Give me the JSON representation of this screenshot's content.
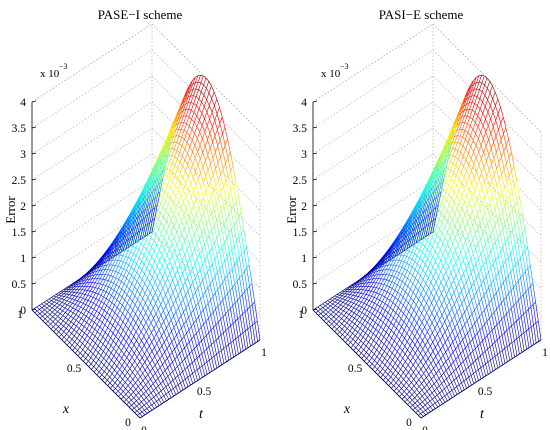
{
  "chart_data": [
    {
      "type": "surface",
      "title": "PASE−I scheme",
      "zlabel": "Error",
      "xlabel": "x",
      "ylabel": "t",
      "zscale": "x 10",
      "zscale_exp": "−3",
      "zticks": [
        "0",
        "0.5",
        "1",
        "1.5",
        "2",
        "2.5",
        "3",
        "3.5",
        "4"
      ],
      "xticks": [
        "0",
        "0.5",
        "1"
      ],
      "tticks": [
        "0",
        "0.5",
        "1"
      ],
      "xlim": [
        0,
        1
      ],
      "tlim": [
        0,
        1
      ],
      "zlim": [
        0,
        0.004
      ],
      "peak": 0.004,
      "peak_at": {
        "x": 0.5,
        "t": 1.0
      },
      "grid": true,
      "colormap": "jet"
    },
    {
      "type": "surface",
      "title": "PASI−E scheme",
      "zlabel": "Error",
      "xlabel": "x",
      "ylabel": "t",
      "zscale": "x 10",
      "zscale_exp": "−3",
      "zticks": [
        "0",
        "0.5",
        "1",
        "1.5",
        "2",
        "2.5",
        "3",
        "3.5",
        "4"
      ],
      "xticks": [
        "0",
        "0.5",
        "1"
      ],
      "tticks": [
        "0",
        "0.5",
        "1"
      ],
      "xlim": [
        0,
        1
      ],
      "tlim": [
        0,
        1
      ],
      "zlim": [
        0,
        0.004
      ],
      "peak": 0.004,
      "peak_at": {
        "x": 0.5,
        "t": 1.0
      },
      "grid": true,
      "colormap": "jet"
    }
  ]
}
